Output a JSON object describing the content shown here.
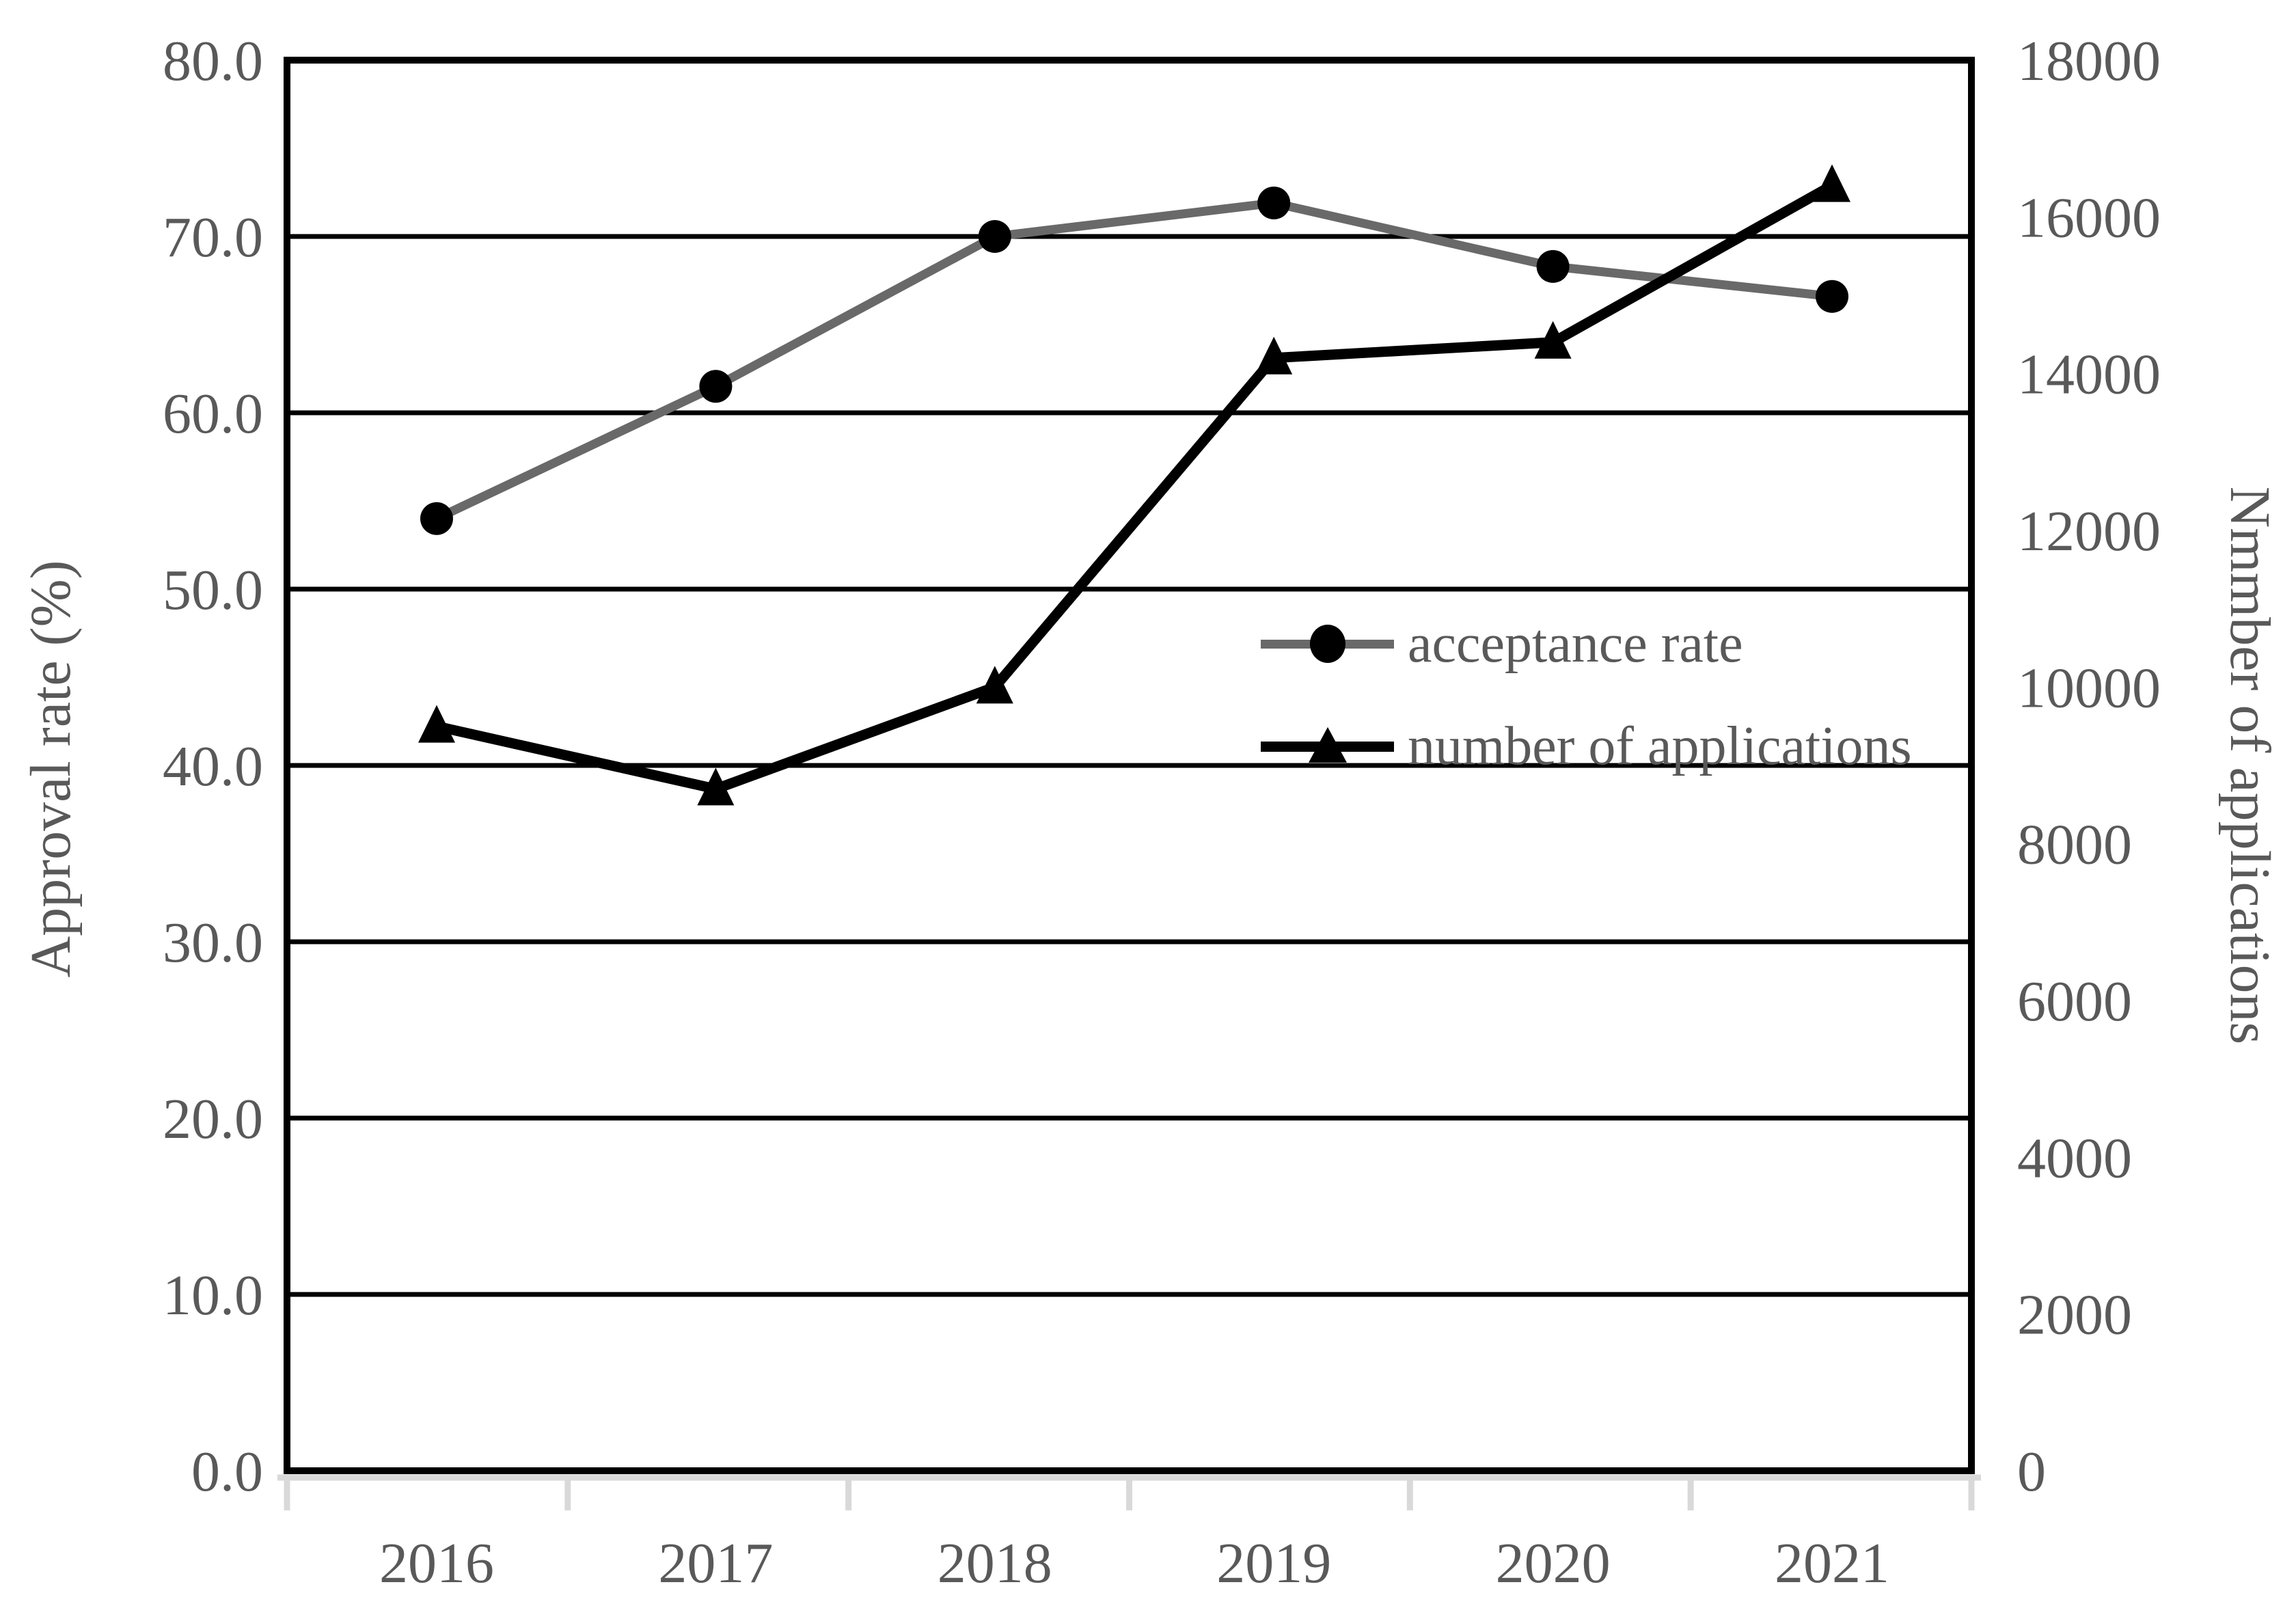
{
  "chart_data": {
    "type": "line",
    "title": "",
    "categories": [
      "2016",
      "2017",
      "2018",
      "2019",
      "2020",
      "2021"
    ],
    "series": [
      {
        "name": "acceptance rate",
        "axis": "left",
        "marker": "circle",
        "line_color": "#696969",
        "marker_color": "#000000",
        "values": [
          54.0,
          61.5,
          70.0,
          71.9,
          68.3,
          66.6
        ]
      },
      {
        "name": "number of applications",
        "axis": "right",
        "marker": "triangle",
        "line_color": "#000000",
        "marker_color": "#000000",
        "values": [
          9500,
          8700,
          10000,
          14200,
          14400,
          16400
        ]
      }
    ],
    "axes": {
      "left": {
        "label": "Approval rate (%)",
        "min": 0,
        "max": 80,
        "step": 10,
        "ticks": [
          "0.0",
          "10.0",
          "20.0",
          "30.0",
          "40.0",
          "50.0",
          "60.0",
          "70.0",
          "80.0"
        ]
      },
      "right": {
        "label": "Nmmber of applications",
        "min": 0,
        "max": 18000,
        "step": 2000,
        "ticks": [
          "0",
          "2000",
          "4000",
          "6000",
          "8000",
          "10000",
          "12000",
          "14000",
          "16000",
          "18000"
        ]
      },
      "x": {
        "label": "",
        "ticks": [
          "2016",
          "2017",
          "2018",
          "2019",
          "2020",
          "2021"
        ]
      }
    },
    "legend": {
      "position": "center-right",
      "entries": [
        "acceptance rate",
        "number of applications"
      ]
    },
    "grid": "horizontal",
    "colors": {
      "text": "#595959",
      "grid": "#000000",
      "border": "#000000",
      "baseline_gray": "#d9d9d9",
      "rate_line": "#696969",
      "apps_line": "#000000"
    }
  }
}
